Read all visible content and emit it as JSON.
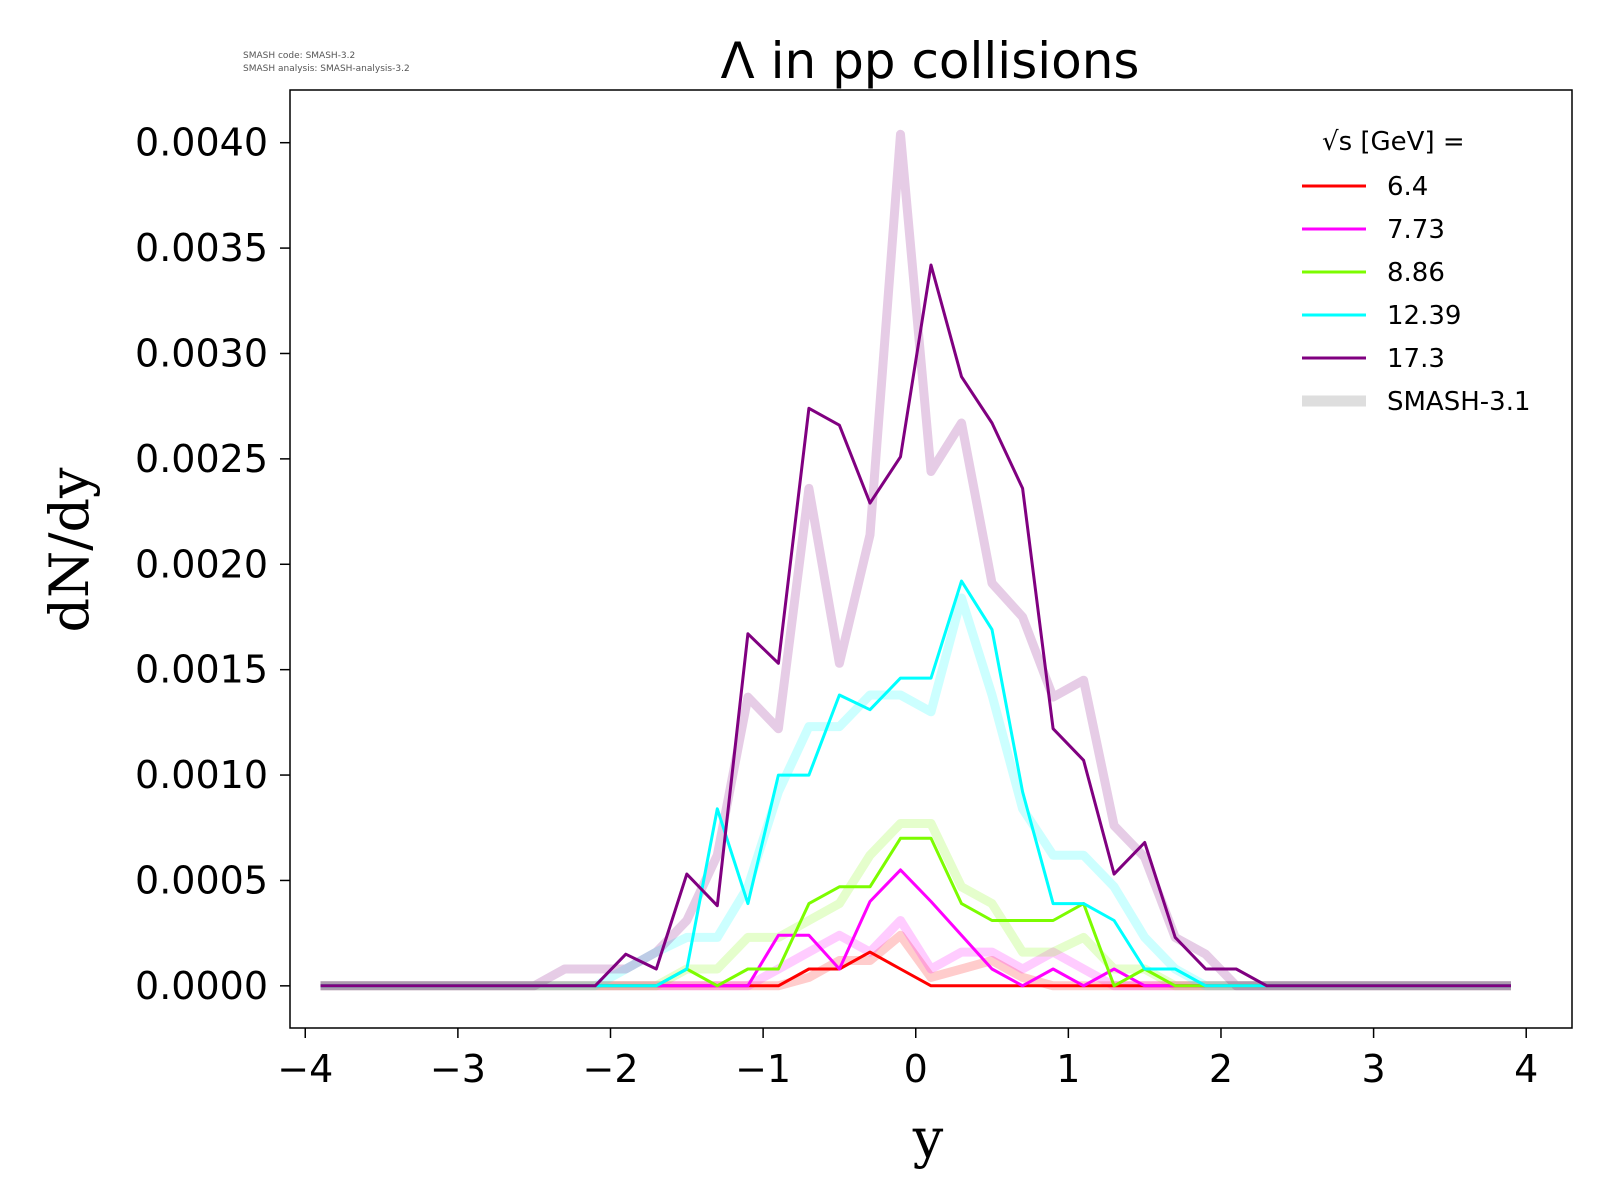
{
  "version_info": {
    "line1": "SMASH code:      SMASH-3.2",
    "line2": "SMASH analysis: SMASH-analysis-3.2"
  },
  "chart_data": {
    "type": "line",
    "title": "Λ in pp collisions",
    "xlabel": "y",
    "ylabel": "dN/dy",
    "xlim": [
      -4.1,
      4.3
    ],
    "ylim": [
      -0.0002,
      0.00425
    ],
    "xticks": [
      -4,
      -3,
      -2,
      -1,
      0,
      1,
      2,
      3,
      4
    ],
    "xtick_labels": [
      "−4",
      "−3",
      "−2",
      "−1",
      "0",
      "1",
      "2",
      "3",
      "4"
    ],
    "yticks": [
      0,
      0.0005,
      0.001,
      0.0015,
      0.002,
      0.0025,
      0.003,
      0.0035,
      0.004
    ],
    "ytick_labels": [
      "0.0000",
      "0.0005",
      "0.0010",
      "0.0015",
      "0.0020",
      "0.0025",
      "0.0030",
      "0.0035",
      "0.0040"
    ],
    "grid": false,
    "legend": {
      "title": "√s  [GeV] =",
      "placement": "top-right",
      "entries": [
        {
          "label": "6.4",
          "color": "#ff0000"
        },
        {
          "label": "7.73",
          "color": "#ff00ff"
        },
        {
          "label": "8.86",
          "color": "#7cfc00"
        },
        {
          "label": "12.39",
          "color": "#00ffff"
        },
        {
          "label": "17.3",
          "color": "#800080"
        },
        {
          "label": "SMASH-3.1",
          "color": "#d3d3d3"
        }
      ]
    },
    "x": [
      -3.9,
      -3.7,
      -3.5,
      -3.3,
      -3.1,
      -2.9,
      -2.7,
      -2.5,
      -2.3,
      -2.1,
      -1.9,
      -1.7,
      -1.5,
      -1.3,
      -1.1,
      -0.9,
      -0.7,
      -0.5,
      -0.3,
      -0.1,
      0.1,
      0.3,
      0.5,
      0.7,
      0.9,
      1.1,
      1.3,
      1.5,
      1.7,
      1.9,
      2.1,
      2.3,
      2.5,
      2.7,
      2.9,
      3.1,
      3.3,
      3.5,
      3.7,
      3.9
    ],
    "series": [
      {
        "name": "6.4",
        "color": "#ff0000",
        "values": [
          0,
          0,
          0,
          0,
          0,
          0,
          0,
          0,
          0,
          0,
          0,
          0,
          0,
          0,
          0,
          0,
          8e-05,
          8e-05,
          0.00016,
          8e-05,
          0,
          0,
          0,
          0,
          0,
          0,
          0,
          0,
          0,
          0,
          0,
          0,
          0,
          0,
          0,
          0,
          0,
          0,
          0,
          0
        ]
      },
      {
        "name": "7.73",
        "color": "#ff00ff",
        "values": [
          0,
          0,
          0,
          0,
          0,
          0,
          0,
          0,
          0,
          0,
          0,
          0,
          0,
          0,
          0,
          0.00024,
          0.00024,
          8e-05,
          0.0004,
          0.00055,
          0.0004,
          0.00024,
          8e-05,
          0,
          8e-05,
          0,
          8e-05,
          0,
          0,
          0,
          0,
          0,
          0,
          0,
          0,
          0,
          0,
          0,
          0,
          0
        ]
      },
      {
        "name": "8.86",
        "color": "#7cfc00",
        "values": [
          0,
          0,
          0,
          0,
          0,
          0,
          0,
          0,
          0,
          0,
          0,
          0,
          8e-05,
          0,
          8e-05,
          8e-05,
          0.00039,
          0.00047,
          0.00047,
          0.0007,
          0.0007,
          0.00039,
          0.00031,
          0.00031,
          0.00031,
          0.00039,
          0,
          8e-05,
          0,
          0,
          0,
          0,
          0,
          0,
          0,
          0,
          0,
          0,
          0,
          0
        ]
      },
      {
        "name": "12.39",
        "color": "#00ffff",
        "values": [
          0,
          0,
          0,
          0,
          0,
          0,
          0,
          0,
          0,
          0,
          0,
          0,
          8e-05,
          0.00084,
          0.00039,
          0.001,
          0.001,
          0.00138,
          0.00131,
          0.00146,
          0.00146,
          0.00192,
          0.00169,
          0.00092,
          0.00039,
          0.00039,
          0.00031,
          8e-05,
          8e-05,
          0,
          0,
          0,
          0,
          0,
          0,
          0,
          0,
          0,
          0,
          0
        ]
      },
      {
        "name": "17.3",
        "color": "#800080",
        "values": [
          0,
          0,
          0,
          0,
          0,
          0,
          0,
          0,
          0,
          0,
          0.00015,
          8e-05,
          0.00053,
          0.00038,
          0.00167,
          0.00153,
          0.00274,
          0.00266,
          0.00229,
          0.00251,
          0.00342,
          0.00289,
          0.00267,
          0.00236,
          0.00122,
          0.00107,
          0.00053,
          0.00068,
          0.00023,
          8e-05,
          8e-05,
          0,
          0,
          0,
          0,
          0,
          0,
          0,
          0,
          0
        ]
      }
    ],
    "reference_series": [
      {
        "name": "SMASH-3.1 (6.4)",
        "color": "#ff0000",
        "values": [
          0,
          0,
          0,
          0,
          0,
          0,
          0,
          0,
          0,
          0,
          0,
          0,
          0,
          0,
          0,
          0,
          4e-05,
          0.00012,
          0.00012,
          0.00024,
          4e-05,
          8e-05,
          0.00012,
          4e-05,
          0,
          0,
          0,
          0,
          0,
          0,
          0,
          0,
          0,
          0,
          0,
          0,
          0,
          0,
          0,
          0
        ]
      },
      {
        "name": "SMASH-3.1 (7.73)",
        "color": "#ff00ff",
        "values": [
          0,
          0,
          0,
          0,
          0,
          0,
          0,
          0,
          0,
          0,
          0,
          0,
          0,
          0,
          0,
          8e-05,
          0.00016,
          0.00024,
          0.00016,
          0.00031,
          8e-05,
          0.00016,
          0.00016,
          8e-05,
          0.00016,
          8e-05,
          0,
          0,
          0,
          0,
          0,
          0,
          0,
          0,
          0,
          0,
          0,
          0,
          0,
          0
        ]
      },
      {
        "name": "SMASH-3.1 (8.86)",
        "color": "#7cfc00",
        "values": [
          0,
          0,
          0,
          0,
          0,
          0,
          0,
          0,
          0,
          0,
          0,
          0,
          8e-05,
          8e-05,
          0.00023,
          0.00023,
          0.00031,
          0.00039,
          0.00062,
          0.00077,
          0.00077,
          0.00047,
          0.00039,
          0.00016,
          0.00016,
          0.00023,
          8e-05,
          8e-05,
          0,
          0,
          0,
          0,
          0,
          0,
          0,
          0,
          0,
          0,
          0,
          0
        ]
      },
      {
        "name": "SMASH-3.1 (12.39)",
        "color": "#00ffff",
        "values": [
          0,
          0,
          0,
          0,
          0,
          0,
          0,
          0,
          0,
          0,
          8e-05,
          0.00016,
          0.00023,
          0.00023,
          0.00047,
          0.00092,
          0.00123,
          0.00123,
          0.00138,
          0.00138,
          0.0013,
          0.00184,
          0.00138,
          0.00084,
          0.00062,
          0.00062,
          0.00047,
          0.00023,
          8e-05,
          0,
          0,
          0,
          0,
          0,
          0,
          0,
          0,
          0,
          0,
          0
        ]
      },
      {
        "name": "SMASH-3.1 (17.3)",
        "color": "#800080",
        "values": [
          0,
          0,
          0,
          0,
          0,
          0,
          0,
          0,
          8e-05,
          8e-05,
          8e-05,
          0.00016,
          0.00031,
          0.00062,
          0.00137,
          0.00122,
          0.00236,
          0.00153,
          0.00214,
          0.00404,
          0.00244,
          0.00267,
          0.00191,
          0.00175,
          0.00137,
          0.00145,
          0.00076,
          0.00061,
          0.00023,
          0.00015,
          0,
          0,
          0,
          0,
          0,
          0,
          0,
          0,
          0,
          0
        ]
      }
    ]
  }
}
